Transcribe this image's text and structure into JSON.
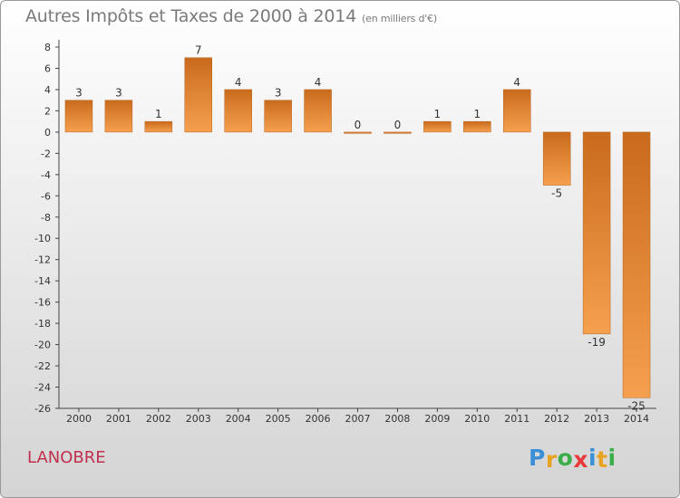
{
  "title": "Autres Impôts et Taxes de 2000 à 2014",
  "subtitle": "(en milliers d'€)",
  "place": "LANOBRE",
  "logo": {
    "letters": [
      "P",
      "r",
      "o",
      "x",
      "i",
      "t",
      "i"
    ],
    "colors": [
      "#3a8fd6",
      "#e8a323",
      "#3cae49",
      "#e83a3a",
      "#3a8fd6",
      "#e8a323",
      "#3cae49"
    ]
  },
  "chart_data": {
    "type": "bar",
    "categories": [
      "2000",
      "2001",
      "2002",
      "2003",
      "2004",
      "2005",
      "2006",
      "2007",
      "2008",
      "2009",
      "2010",
      "2011",
      "2012",
      "2013",
      "2014"
    ],
    "values": [
      3,
      3,
      1,
      7,
      4,
      3,
      4,
      0,
      0,
      1,
      1,
      4,
      -5,
      -19,
      -25
    ],
    "ylim": [
      -26,
      8
    ],
    "yticks": [
      8,
      6,
      4,
      2,
      0,
      -2,
      -4,
      -6,
      -8,
      -10,
      -12,
      -14,
      -16,
      -18,
      -20,
      -22,
      -24,
      -26
    ],
    "grid": false,
    "colors": {
      "bar_light": "#f5a04f",
      "bar_dark": "#c96a1c"
    }
  }
}
